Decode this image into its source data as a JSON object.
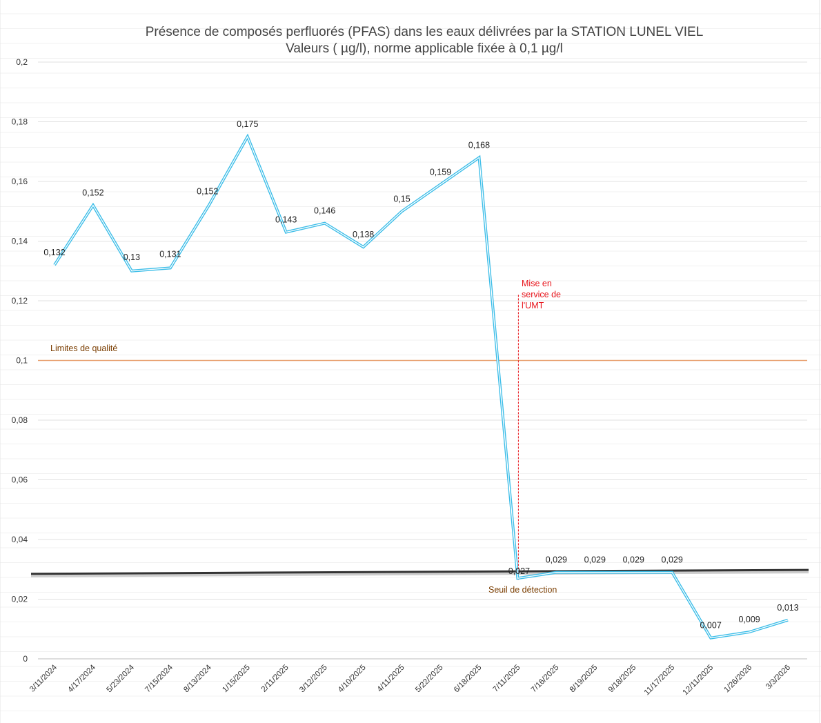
{
  "chart_data": {
    "type": "line",
    "title": "Présence de composés perfluorés (PFAS) dans les eaux délivrées par la STATION LUNEL VIEL",
    "subtitle": "Valeurs ( µg/l), norme applicable fixée à 0,1 µg/l",
    "xlabel": "",
    "ylabel": "",
    "ylim": [
      0,
      0.2
    ],
    "y_ticks": [
      "0",
      "0,02",
      "0,04",
      "0,06",
      "0,08",
      "0,1",
      "0,12",
      "0,14",
      "0,16",
      "0,18",
      "0,2"
    ],
    "grid": true,
    "legend": "none",
    "categories": [
      "3/11/2024",
      "4/17/2024",
      "5/23/2024",
      "7/15/2024",
      "8/13/2024",
      "1/15/2025",
      "2/11/2025",
      "3/12/2025",
      "4/10/2025",
      "4/11/2025",
      "5/22/2025",
      "6/18/2025",
      "7/11/2025",
      "7/16/2025",
      "8/19/2025",
      "9/18/2025",
      "11/17/2025",
      "12/11/2025",
      "1/26/2026",
      "3/3/2026"
    ],
    "values": [
      0.132,
      0.152,
      0.13,
      0.131,
      0.152,
      0.175,
      0.143,
      0.146,
      0.138,
      0.15,
      0.159,
      0.168,
      0.027,
      0.029,
      0.029,
      0.029,
      0.029,
      0.007,
      0.009,
      0.013
    ],
    "data_labels": [
      "0,132",
      "0,152",
      "0,13",
      "0,131",
      "0,152",
      "0,175",
      "0,143",
      "0,146",
      "0,138",
      "0,15",
      "0,159",
      "0,168",
      "0,027",
      "0,029",
      "0,029",
      "0,029",
      "0,029",
      "0,007",
      "0,009",
      "0,013"
    ],
    "series_color": "#3bbde8",
    "annotations": {
      "quality_limit": {
        "label": "Limites de qualité",
        "value": 0.1,
        "color": "#e8a070",
        "label_color": "#7a3d00"
      },
      "detection_threshold": {
        "label": "Seuil de détection",
        "value_start": 0.0285,
        "value_end": 0.0298,
        "color": "#333333",
        "label_color": "#7a3d00"
      },
      "umt_start": {
        "lines": [
          "Mise en",
          "service de",
          "l'UMT"
        ],
        "category": "7/11/2025",
        "top_value": 0.122,
        "color": "#e8141b"
      }
    }
  }
}
